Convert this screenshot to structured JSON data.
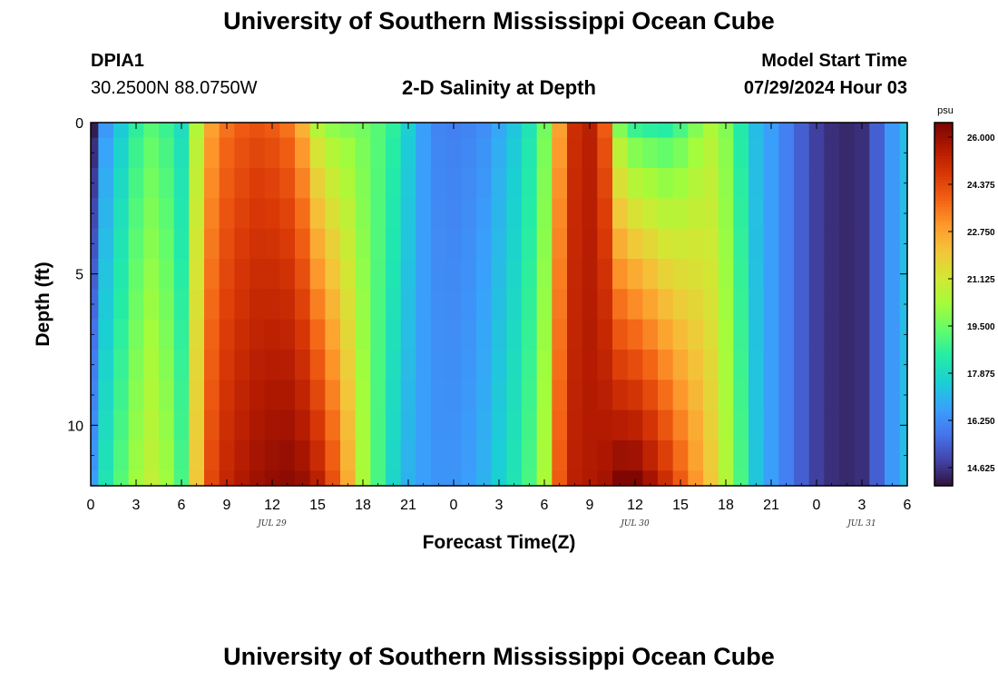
{
  "header": {
    "title": "University of Southern Mississippi Ocean Cube",
    "station_id": "DPIA1",
    "station_coords": "30.2500N  88.0750W",
    "plot_title": "2-D Salinity at Depth",
    "model_start_label": "Model Start Time",
    "model_start_value": "07/29/2024 Hour 03"
  },
  "footer": {
    "title": "University of Southern Mississippi Ocean Cube"
  },
  "chart_data": {
    "type": "heatmap",
    "title": "2-D Salinity at Depth",
    "xlabel": "Forecast Time(Z)",
    "ylabel": "Depth (ft)",
    "x_range_hours": [
      0,
      54
    ],
    "x_tick_labels": [
      "0",
      "3",
      "6",
      "9",
      "12",
      "15",
      "18",
      "21",
      "0",
      "3",
      "6",
      "9",
      "12",
      "15",
      "18",
      "21",
      "0",
      "3",
      "6"
    ],
    "date_labels": [
      {
        "label": "JUL 29",
        "hour": 12
      },
      {
        "label": "JUL 30",
        "hour": 36
      },
      {
        "label": "JUL 31",
        "hour": 51
      }
    ],
    "y_range_ft": [
      0,
      12
    ],
    "y_ticks": [
      0,
      5,
      10
    ],
    "y_reversed": true,
    "colorbar": {
      "unit": "psu",
      "min": 14.0,
      "max": 26.5,
      "tick_labels": [
        "26.000",
        "24.375",
        "22.750",
        "21.125",
        "19.500",
        "17.875",
        "16.250",
        "14.625"
      ],
      "colors": [
        "#30123b",
        "#4145ab",
        "#4675ed",
        "#39a2fc",
        "#1bcfd4",
        "#24eca6",
        "#61fc6c",
        "#a4fc3b",
        "#d1e834",
        "#f3c63a",
        "#fe9b2d",
        "#f36315",
        "#d93806",
        "#b11901",
        "#7a0403"
      ]
    },
    "time_hours": [
      0,
      1,
      2,
      3,
      4,
      5,
      6,
      7,
      8,
      9,
      10,
      11,
      12,
      13,
      14,
      15,
      16,
      17,
      18,
      19,
      20,
      21,
      22,
      23,
      24,
      25,
      26,
      27,
      28,
      29,
      30,
      31,
      32,
      33,
      34,
      35,
      36,
      37,
      38,
      39,
      40,
      41,
      42,
      43,
      44,
      45,
      46,
      47,
      48,
      49,
      50,
      51,
      52,
      53,
      54
    ],
    "surface_salinity_psu": [
      14.2,
      16.5,
      17.5,
      18.6,
      19.2,
      18.8,
      18.0,
      20.5,
      22.8,
      23.6,
      24.0,
      24.2,
      24.0,
      23.6,
      22.5,
      20.6,
      20.0,
      19.8,
      19.6,
      19.2,
      18.6,
      17.6,
      16.6,
      16.1,
      16.0,
      16.1,
      16.3,
      16.8,
      17.4,
      18.2,
      19.6,
      22.8,
      25.0,
      25.4,
      24.0,
      19.8,
      18.8,
      18.6,
      18.5,
      19.0,
      19.8,
      20.4,
      19.8,
      18.4,
      17.2,
      16.6,
      16.0,
      15.4,
      14.8,
      14.5,
      14.4,
      14.5,
      15.4,
      16.5,
      17.2
    ],
    "bottom_salinity_psu": [
      16.6,
      18.2,
      19.2,
      20.2,
      20.8,
      20.2,
      19.0,
      22.0,
      24.4,
      25.2,
      25.6,
      25.9,
      26.1,
      26.2,
      26.0,
      25.4,
      24.2,
      22.6,
      20.4,
      19.0,
      17.8,
      17.0,
      16.6,
      16.4,
      16.4,
      16.6,
      17.0,
      17.6,
      18.2,
      19.0,
      20.4,
      24.0,
      25.4,
      25.6,
      25.8,
      26.4,
      26.4,
      25.8,
      25.0,
      24.0,
      23.0,
      22.0,
      20.5,
      19.0,
      17.4,
      16.6,
      16.0,
      15.4,
      14.8,
      14.5,
      14.4,
      14.5,
      15.4,
      16.5,
      17.2
    ],
    "depth_levels_ft": [
      0,
      1,
      2,
      3,
      4,
      5,
      6,
      7,
      8,
      9,
      10,
      11,
      12
    ]
  }
}
